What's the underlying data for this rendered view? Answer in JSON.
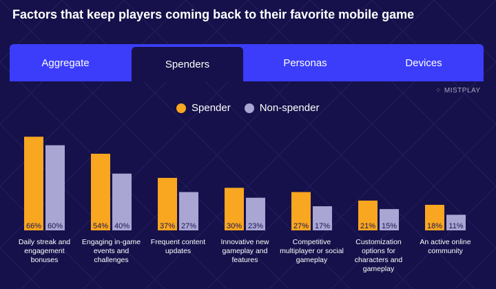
{
  "title": "Factors that keep players coming back to their favorite mobile game",
  "tabs": [
    {
      "label": "Aggregate",
      "active": false
    },
    {
      "label": "Spenders",
      "active": true
    },
    {
      "label": "Personas",
      "active": false
    },
    {
      "label": "Devices",
      "active": false
    }
  ],
  "brand": {
    "name": "MISTPLAY",
    "icon": "mistplay-logo-icon"
  },
  "colors": {
    "background": "#16114a",
    "tab_bar": "#3b3dfa",
    "spender": "#f9a620",
    "non_spender": "#a9a6d3"
  },
  "chart_data": {
    "type": "bar",
    "categories": [
      "Daily streak and engagement bonuses",
      "Engaging in-game events and challenges",
      "Frequent content updates",
      "Innovative new gameplay and features",
      "Competitive multiplayer or social gameplay",
      "Customization options for characters and gameplay",
      "An active online community"
    ],
    "series": [
      {
        "name": "Spender",
        "values": [
          66,
          54,
          37,
          30,
          27,
          21,
          18
        ]
      },
      {
        "name": "Non-spender",
        "values": [
          60,
          40,
          27,
          23,
          17,
          15,
          11
        ]
      }
    ],
    "ylim": [
      0,
      70
    ],
    "value_suffix": "%",
    "grid": false,
    "legend": "top-center"
  }
}
